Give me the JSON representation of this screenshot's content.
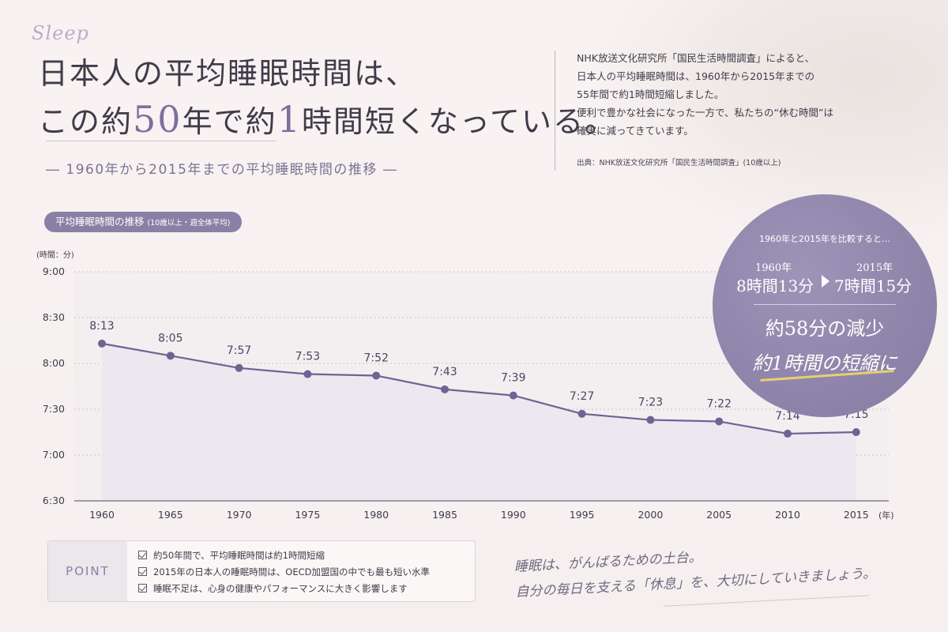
{
  "header": {
    "script_title": "Sleep",
    "headline_line1": "日本人の平均睡眠時間は、",
    "headline_line2_a": "この約",
    "headline_line2_num": "50",
    "headline_line2_b": "年で約",
    "headline_line2_num2": "1",
    "headline_line2_c": "時間短くなっている。",
    "subtitle": "― 1960年から2015年までの平均睡眠時間の推移 ―"
  },
  "intro": {
    "lines": [
      "NHK放送文化研究所「国民生活時間調査」によると、",
      "日本人の平均睡眠時間は、1960年から2015年までの",
      "55年間で約1時間短縮しました。",
      "便利で豊かな社会になった一方で、私たちの“休む時間”は",
      "確実に減ってきています。"
    ],
    "source": "出典：NHK放送文化研究所「国民生活時間調査」(10歳以上)"
  },
  "chart_pill": {
    "label": "平均睡眠時間の推移",
    "sub": "(10歳以上・週全体平均)"
  },
  "chart_data": {
    "type": "area",
    "title": "平均睡眠時間の推移",
    "subtitle": "(10歳以上・週全体平均)",
    "ylabel": "(時間：分)",
    "xlabel": "(年)",
    "categories": [
      "1960",
      "1965",
      "1970",
      "1975",
      "1980",
      "1985",
      "1990",
      "1995",
      "2000",
      "2005",
      "2010",
      "2015"
    ],
    "values_minutes": [
      493,
      485,
      477,
      473,
      472,
      463,
      459,
      447,
      443,
      442,
      434,
      435
    ],
    "value_labels": [
      "8:13",
      "8:05",
      "7:57",
      "7:53",
      "7:52",
      "7:43",
      "7:39",
      "7:27",
      "7:23",
      "7:22",
      "7:14",
      "7:15"
    ],
    "ylim_minutes": [
      390,
      540
    ],
    "yticks_minutes": [
      390,
      420,
      450,
      480,
      510,
      540
    ],
    "ytick_labels": [
      "6:30",
      "7:00",
      "7:30",
      "8:00",
      "8:30",
      "9:00"
    ],
    "grid": true,
    "line_color": "#6e6392",
    "fill_color": "#ece7f0"
  },
  "badge": {
    "compare_text": "1960年と2015年を比較すると…",
    "from_year": "1960年",
    "from_value": "8時間13分",
    "to_year": "2015年",
    "to_value": "7時間15分",
    "reduction": "約58分の減少",
    "shortening": "約1時間の短縮に"
  },
  "point": {
    "label": "POINT",
    "items": [
      "約50年間で、平均睡眠時間は約1時間短縮",
      "2015年の日本人の睡眠時間は、OECD加盟国の中でも最も短い水準",
      "睡眠不足は、心身の健康やパフォーマンスに大きく影響します"
    ]
  },
  "closing": {
    "line1": "睡眠は、がんばるための土台。",
    "line2": "自分の毎日を支える「休息」を、大切にしていきましょう。"
  }
}
